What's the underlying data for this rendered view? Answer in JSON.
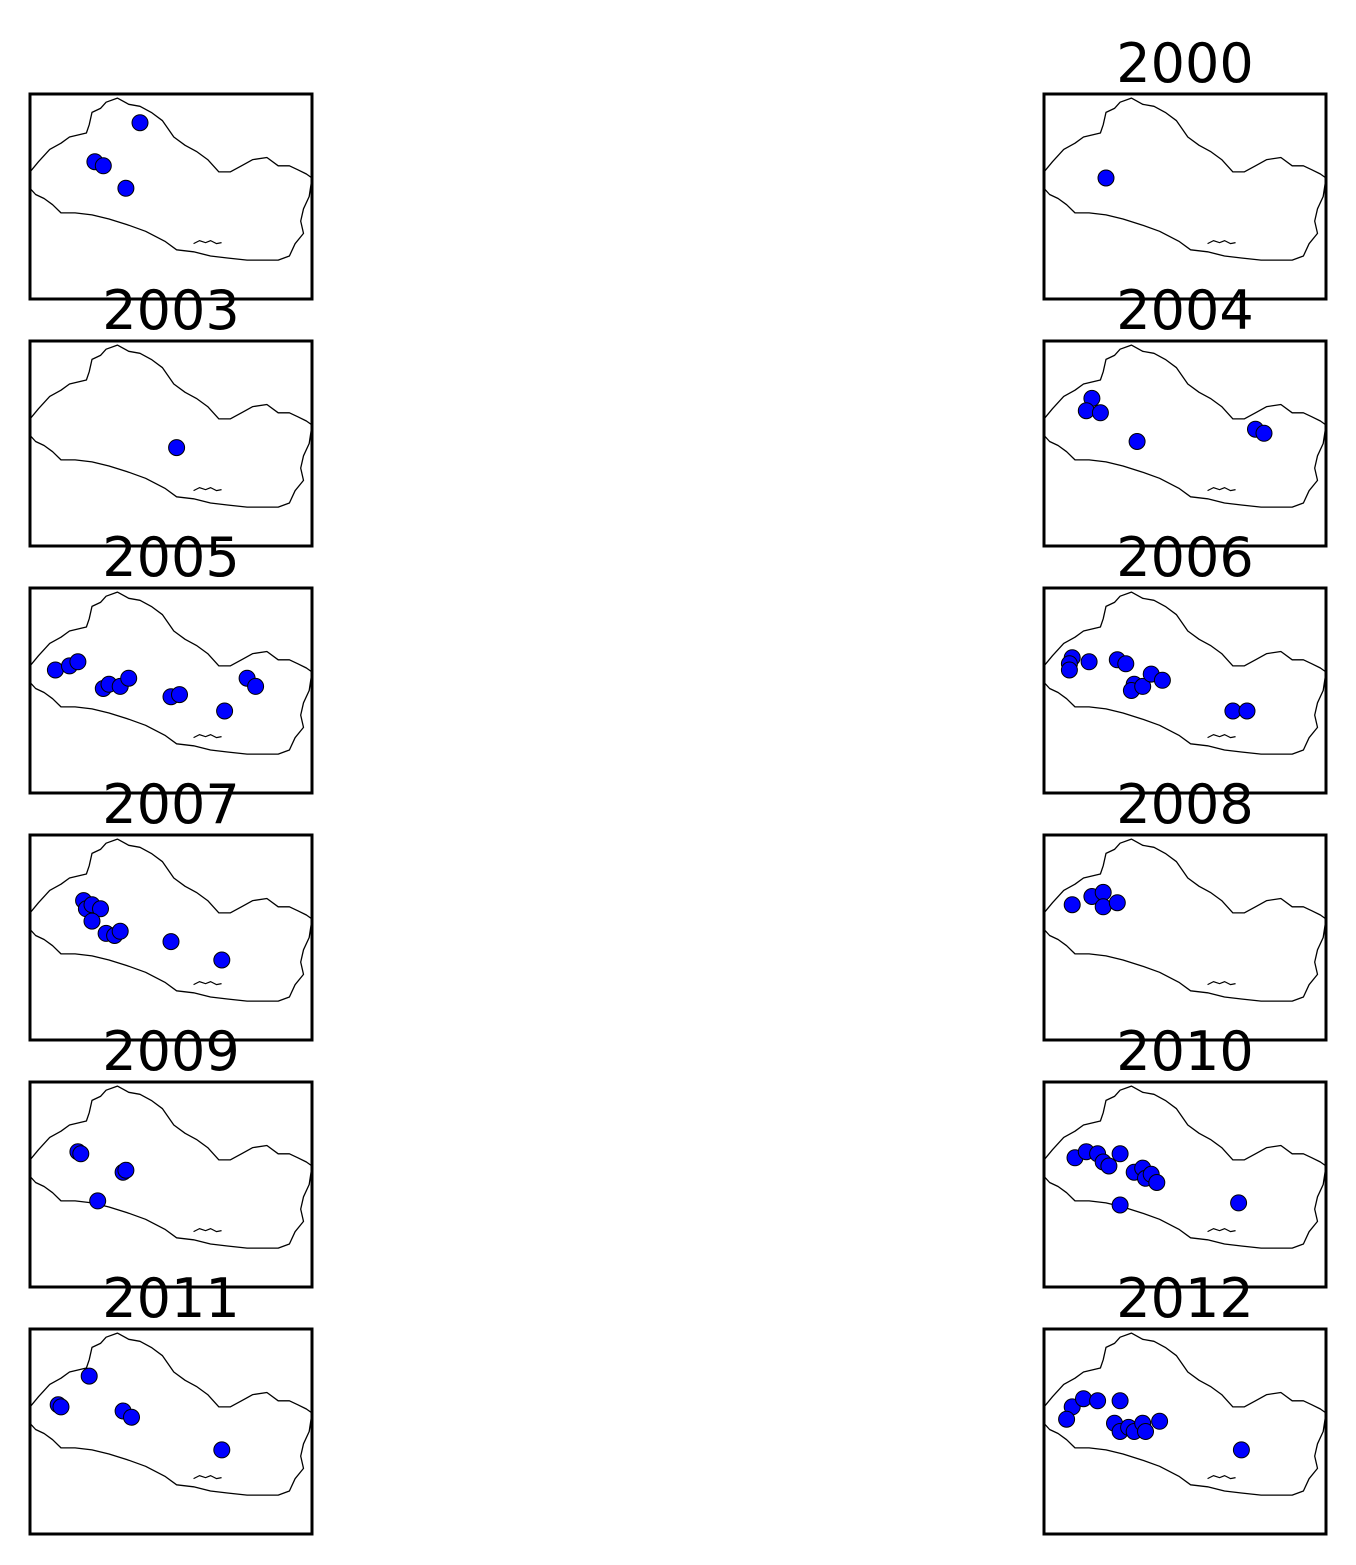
{
  "figure": {
    "panels": [
      {
        "title": "",
        "points": [
          [
            0.39,
            0.14
          ],
          [
            0.23,
            0.33
          ],
          [
            0.26,
            0.35
          ],
          [
            0.34,
            0.46
          ]
        ]
      },
      {
        "title": "2000",
        "points": [
          [
            0.22,
            0.41
          ]
        ]
      },
      {
        "title": "2003",
        "points": [
          [
            0.52,
            0.52
          ]
        ]
      },
      {
        "title": "2004",
        "points": [
          [
            0.17,
            0.28
          ],
          [
            0.15,
            0.34
          ],
          [
            0.2,
            0.35
          ],
          [
            0.33,
            0.49
          ],
          [
            0.75,
            0.43
          ],
          [
            0.78,
            0.45
          ]
        ]
      },
      {
        "title": "2005",
        "points": [
          [
            0.09,
            0.4
          ],
          [
            0.14,
            0.38
          ],
          [
            0.17,
            0.36
          ],
          [
            0.26,
            0.49
          ],
          [
            0.28,
            0.47
          ],
          [
            0.32,
            0.48
          ],
          [
            0.35,
            0.44
          ],
          [
            0.5,
            0.53
          ],
          [
            0.53,
            0.52
          ],
          [
            0.69,
            0.6
          ],
          [
            0.77,
            0.44
          ],
          [
            0.8,
            0.48
          ]
        ]
      },
      {
        "title": "2006",
        "points": [
          [
            0.1,
            0.34
          ],
          [
            0.09,
            0.37
          ],
          [
            0.09,
            0.4
          ],
          [
            0.16,
            0.36
          ],
          [
            0.26,
            0.35
          ],
          [
            0.29,
            0.37
          ],
          [
            0.32,
            0.47
          ],
          [
            0.31,
            0.5
          ],
          [
            0.35,
            0.48
          ],
          [
            0.38,
            0.42
          ],
          [
            0.42,
            0.45
          ],
          [
            0.67,
            0.6
          ],
          [
            0.72,
            0.6
          ]
        ]
      },
      {
        "title": "2007",
        "points": [
          [
            0.19,
            0.32
          ],
          [
            0.2,
            0.36
          ],
          [
            0.22,
            0.34
          ],
          [
            0.25,
            0.36
          ],
          [
            0.22,
            0.42
          ],
          [
            0.27,
            0.48
          ],
          [
            0.3,
            0.49
          ],
          [
            0.32,
            0.47
          ],
          [
            0.5,
            0.52
          ],
          [
            0.68,
            0.61
          ]
        ]
      },
      {
        "title": "2008",
        "points": [
          [
            0.1,
            0.34
          ],
          [
            0.17,
            0.3
          ],
          [
            0.21,
            0.28
          ],
          [
            0.21,
            0.35
          ],
          [
            0.26,
            0.33
          ]
        ]
      },
      {
        "title": "2009",
        "points": [
          [
            0.17,
            0.34
          ],
          [
            0.18,
            0.35
          ],
          [
            0.33,
            0.44
          ],
          [
            0.34,
            0.43
          ],
          [
            0.24,
            0.58
          ]
        ]
      },
      {
        "title": "2010",
        "points": [
          [
            0.11,
            0.37
          ],
          [
            0.15,
            0.34
          ],
          [
            0.19,
            0.35
          ],
          [
            0.21,
            0.39
          ],
          [
            0.23,
            0.41
          ],
          [
            0.27,
            0.35
          ],
          [
            0.32,
            0.44
          ],
          [
            0.35,
            0.42
          ],
          [
            0.36,
            0.47
          ],
          [
            0.38,
            0.45
          ],
          [
            0.4,
            0.49
          ],
          [
            0.27,
            0.6
          ],
          [
            0.69,
            0.59
          ]
        ]
      },
      {
        "title": "2011",
        "points": [
          [
            0.21,
            0.23
          ],
          [
            0.1,
            0.37
          ],
          [
            0.11,
            0.38
          ],
          [
            0.33,
            0.4
          ],
          [
            0.36,
            0.43
          ],
          [
            0.68,
            0.59
          ]
        ]
      },
      {
        "title": "2012",
        "points": [
          [
            0.1,
            0.38
          ],
          [
            0.08,
            0.44
          ],
          [
            0.14,
            0.34
          ],
          [
            0.19,
            0.35
          ],
          [
            0.27,
            0.35
          ],
          [
            0.25,
            0.46
          ],
          [
            0.27,
            0.5
          ],
          [
            0.3,
            0.48
          ],
          [
            0.32,
            0.5
          ],
          [
            0.35,
            0.46
          ],
          [
            0.36,
            0.5
          ],
          [
            0.41,
            0.45
          ],
          [
            0.7,
            0.59
          ]
        ]
      }
    ],
    "point_color": "#0000ff",
    "point_edge_color": "#000000",
    "border_color": "#000000"
  }
}
